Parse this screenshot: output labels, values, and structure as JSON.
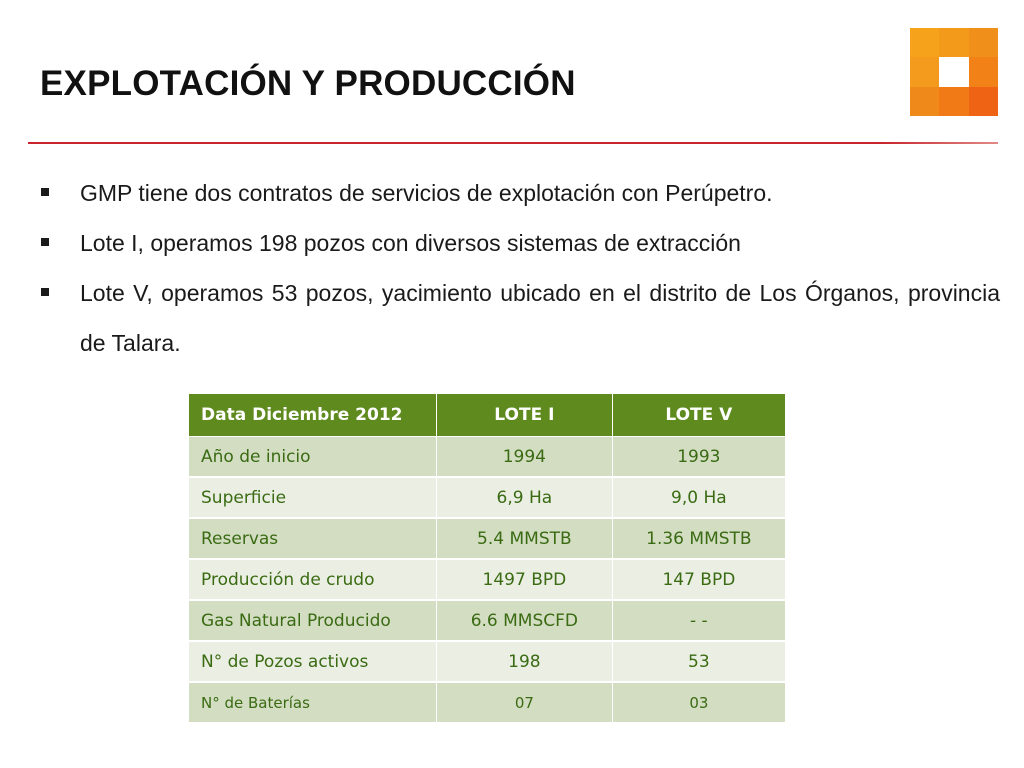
{
  "title": "EXPLOTACIÓN Y PRODUCCIÓN",
  "logo": {
    "colors": [
      "#f7a21b",
      "#f39a1b",
      "#f08f1a",
      "#f49a1c",
      "#ffffff",
      "#f28118",
      "#ef8a1a",
      "#f17a17",
      "#ee6414"
    ]
  },
  "bullets": [
    "GMP tiene dos contratos de servicios de explotación con Perúpetro.",
    "Lote I, operamos 198 pozos con diversos sistemas de extracción",
    "Lote V, operamos 53 pozos, yacimiento ubicado en el distrito de Los Órganos, provincia de Talara."
  ],
  "table": {
    "headers": [
      "Data Diciembre 2012",
      "LOTE I",
      "LOTE V"
    ],
    "rows": [
      [
        "Año de inicio",
        "1994",
        "1993"
      ],
      [
        "Superficie",
        "6,9 Ha",
        "9,0 Ha"
      ],
      [
        "Reservas",
        "5.4 MMSTB",
        "1.36 MMSTB"
      ],
      [
        "Producción de crudo",
        "1497 BPD",
        "147 BPD"
      ],
      [
        "Gas Natural Producido",
        "6.6 MMSCFD",
        "- -"
      ],
      [
        "N° de Pozos  activos",
        "198",
        "53"
      ],
      [
        "N° de Baterías",
        "07",
        "03"
      ]
    ]
  },
  "colors": {
    "header_bg": "#5e8a1e",
    "row_dark": "#d3ddc2",
    "row_light": "#ebefe3",
    "cell_text": "#3a6b13",
    "rule": "#c8252c"
  }
}
